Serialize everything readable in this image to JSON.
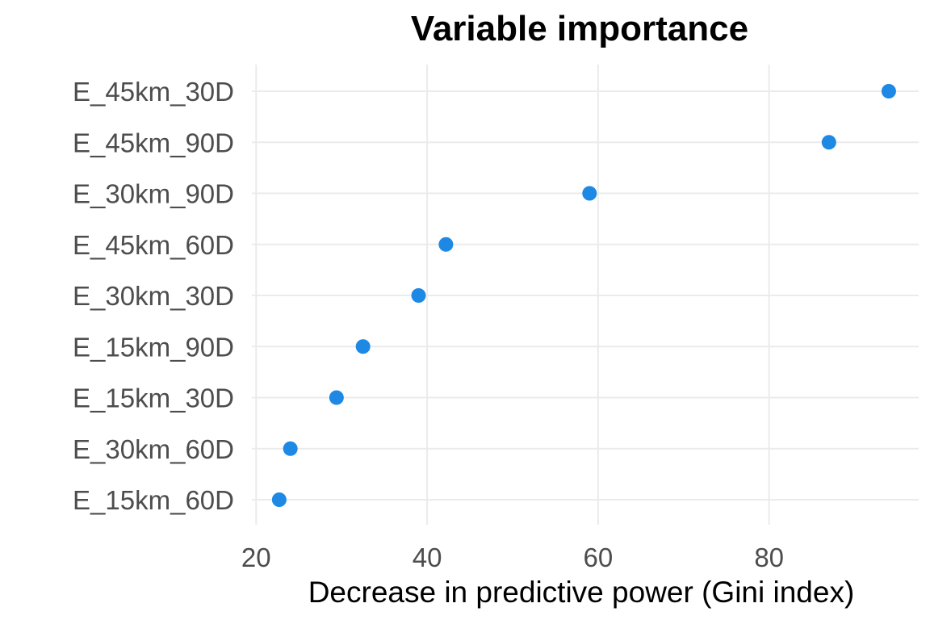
{
  "chart_data": {
    "type": "scatter",
    "title": "Variable importance",
    "xlabel": "Decrease in predictive power (Gini index)",
    "ylabel": "",
    "xlim": [
      19.5,
      97.5
    ],
    "xticks": [
      20,
      40,
      60,
      80
    ],
    "xtick_labels": [
      "20",
      "40",
      "60",
      "80"
    ],
    "grid": true,
    "legend": "none",
    "point_color": "#1e88e5",
    "categories": [
      "E_45km_30D",
      "E_45km_90D",
      "E_30km_90D",
      "E_45km_60D",
      "E_30km_30D",
      "E_15km_90D",
      "E_15km_30D",
      "E_30km_60D",
      "E_15km_60D"
    ],
    "values": [
      94.0,
      87.0,
      59.0,
      42.2,
      39.0,
      32.5,
      29.4,
      24.0,
      22.7
    ]
  }
}
